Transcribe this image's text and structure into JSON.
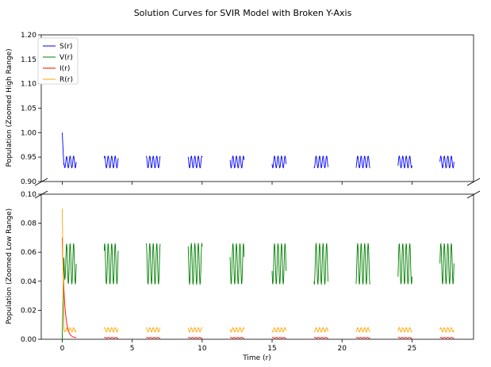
{
  "chart_data": {
    "type": "line",
    "title": "Solution Curves for SVIR Model with Broken Y-Axis",
    "xlabel": "Time (r)",
    "xlim": [
      -1.5,
      29.4
    ],
    "x_ticks": [
      "0",
      "5",
      "10",
      "15",
      "20",
      "25"
    ],
    "x_tick_values": [
      0,
      5,
      10,
      15,
      20,
      25
    ],
    "top_panel": {
      "ylabel": "Population (Zoomed High Range)",
      "ylim": [
        0.9,
        1.2
      ],
      "y_ticks": [
        "0.90",
        "0.95",
        "1.00",
        "1.05",
        "1.10",
        "1.15",
        "1.20"
      ],
      "y_tick_values": [
        0.9,
        0.95,
        1.0,
        1.05,
        1.1,
        1.15,
        1.2
      ]
    },
    "bottom_panel": {
      "ylabel": "Population (Zoomed Low Range)",
      "ylim": [
        0.0,
        0.1
      ],
      "y_ticks": [
        "0.00",
        "0.02",
        "0.04",
        "0.06",
        "0.08",
        "0.10"
      ],
      "y_tick_values": [
        0.0,
        0.02,
        0.04,
        0.06,
        0.08,
        0.1
      ]
    },
    "legend": {
      "placement": "top-left"
    },
    "series": [
      {
        "name": "S(r)",
        "color": "#0000ff",
        "panel": "top",
        "initial": 1.0,
        "initial_drop_to": 0.93,
        "oscillation_center": 0.94,
        "oscillation_amplitude": 0.012,
        "oscillations_per_segment": 4
      },
      {
        "name": "V(r)",
        "color": "#008000",
        "panel": "bottom",
        "initial": 0.0,
        "initial_rise_to": 0.06,
        "oscillation_center": 0.052,
        "oscillation_amplitude": 0.014,
        "oscillations_per_segment": 4
      },
      {
        "name": "I(r)",
        "color": "#ff0000",
        "panel": "bottom",
        "initial": 0.07,
        "decays_to": 0.001
      },
      {
        "name": "R(r)",
        "color": "#ffa500",
        "panel": "bottom",
        "initial": 0.09,
        "decays_to": 0.006,
        "oscillation_center": 0.0065,
        "oscillation_amplitude": 0.0015,
        "oscillations_per_segment": 4
      }
    ],
    "segments": [
      [
        0,
        1
      ],
      [
        3,
        4
      ],
      [
        6,
        7
      ],
      [
        9,
        10
      ],
      [
        12,
        13
      ],
      [
        15,
        16
      ],
      [
        18,
        19
      ],
      [
        21,
        22
      ],
      [
        24,
        25
      ],
      [
        27,
        28
      ]
    ]
  }
}
